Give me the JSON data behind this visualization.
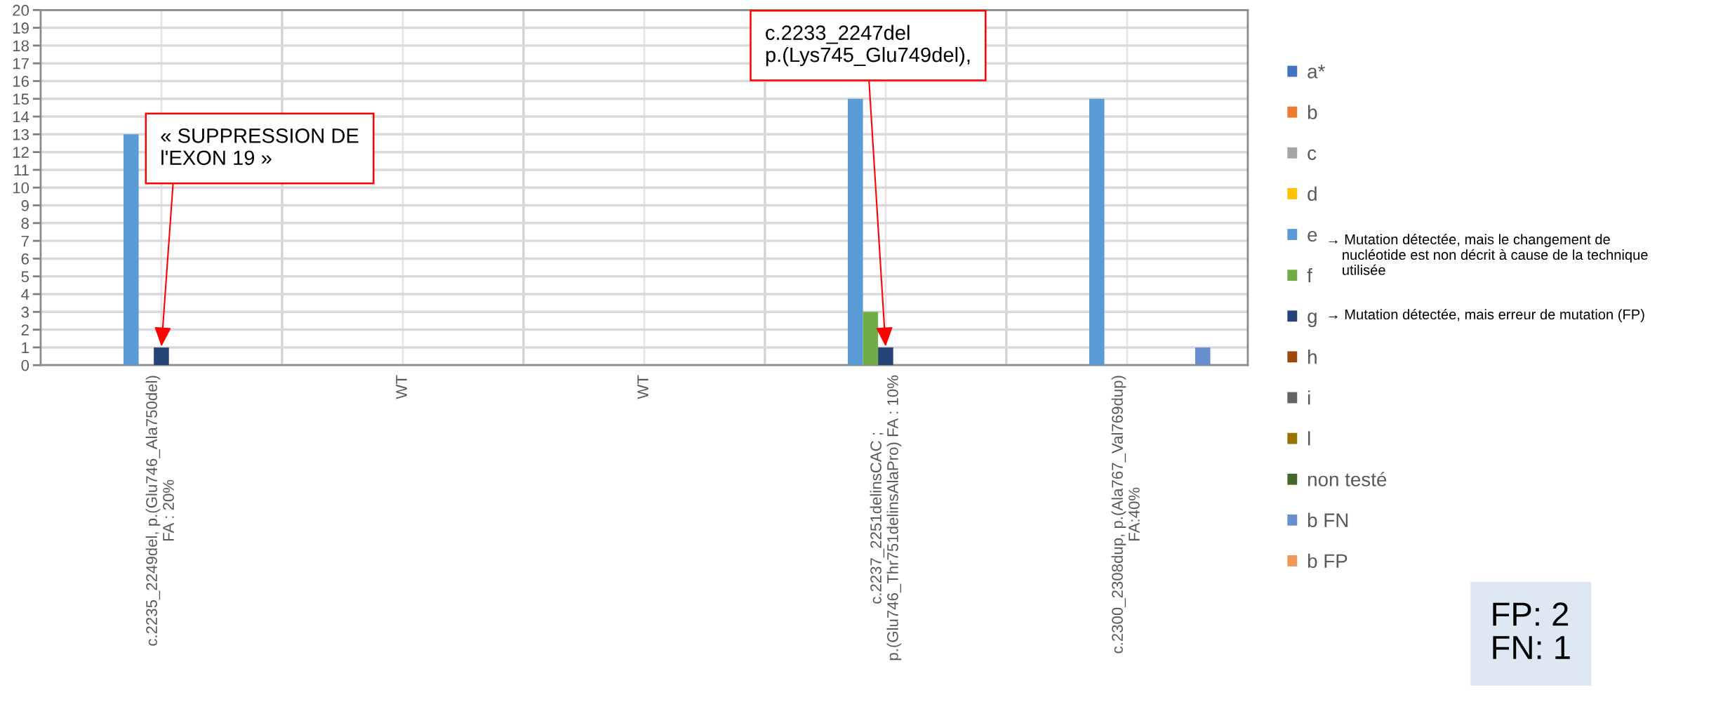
{
  "chart_data": {
    "type": "bar",
    "categories": [
      "c.2235_2249del, p.(Glu746_Ala750del)\nFA : 20%",
      "WT",
      "WT",
      "c.2237_2251delinsCAC ;\np.(Glu746_Thr751delinsAlaPro) FA : 10%",
      "c.2300_2308dup, p.(Ala767_Val769dup)\nFA:40%"
    ],
    "series": [
      {
        "name": "a*",
        "color": "#4472c4",
        "values": [
          0,
          0,
          0,
          0,
          0
        ]
      },
      {
        "name": "b",
        "color": "#ed7d31",
        "values": [
          0,
          0,
          0,
          0,
          0
        ]
      },
      {
        "name": "c",
        "color": "#a5a5a5",
        "values": [
          0,
          0,
          0,
          0,
          0
        ]
      },
      {
        "name": "d",
        "color": "#ffc000",
        "values": [
          0,
          0,
          0,
          0,
          0
        ]
      },
      {
        "name": "e",
        "color": "#5b9bd5",
        "values": [
          13,
          0,
          0,
          15,
          15
        ]
      },
      {
        "name": "f",
        "color": "#70ad47",
        "values": [
          0,
          0,
          0,
          3,
          0
        ]
      },
      {
        "name": "g",
        "color": "#264478",
        "values": [
          1,
          0,
          0,
          1,
          0
        ]
      },
      {
        "name": "h",
        "color": "#9e480e",
        "values": [
          0,
          0,
          0,
          0,
          0
        ]
      },
      {
        "name": "i",
        "color": "#636363",
        "values": [
          0,
          0,
          0,
          0,
          0
        ]
      },
      {
        "name": "l",
        "color": "#997300",
        "values": [
          0,
          0,
          0,
          0,
          0
        ]
      },
      {
        "name": "non testé",
        "color": "#43682b",
        "values": [
          0,
          0,
          0,
          0,
          0
        ]
      },
      {
        "name": "b FN",
        "color": "#698ed0",
        "values": [
          0,
          0,
          0,
          0,
          1
        ]
      },
      {
        "name": "b FP",
        "color": "#f1975a",
        "values": [
          0,
          0,
          0,
          0,
          0
        ]
      }
    ],
    "ylim": [
      0,
      20
    ],
    "yticks": [
      0,
      1,
      2,
      3,
      4,
      5,
      6,
      7,
      8,
      9,
      10,
      11,
      12,
      13,
      14,
      15,
      16,
      17,
      18,
      19,
      20
    ],
    "grid": true,
    "legend": "right",
    "annotations": [
      {
        "text": "« SUPPRESSION DE\nl'EXON 19 »",
        "x": "c.2235_2249del, p.(Glu746_Ala750del)\nFA : 20%",
        "y": 1
      },
      {
        "text": "c.2233_2247del\np.(Lys745_Glu749del),",
        "x": "c.2237_2251delinsCAC ;\np.(Glu746_Thr751delinsAlaPro) FA : 10%",
        "y": 1
      },
      "→ Mutation détectée, mais le changement de\n    nucléotide est non décrit à cause de la technique\n    utilisée",
      "→ Mutation détectée, mais erreur de mutation (FP)",
      "FP: 2\nFN: 1"
    ]
  }
}
